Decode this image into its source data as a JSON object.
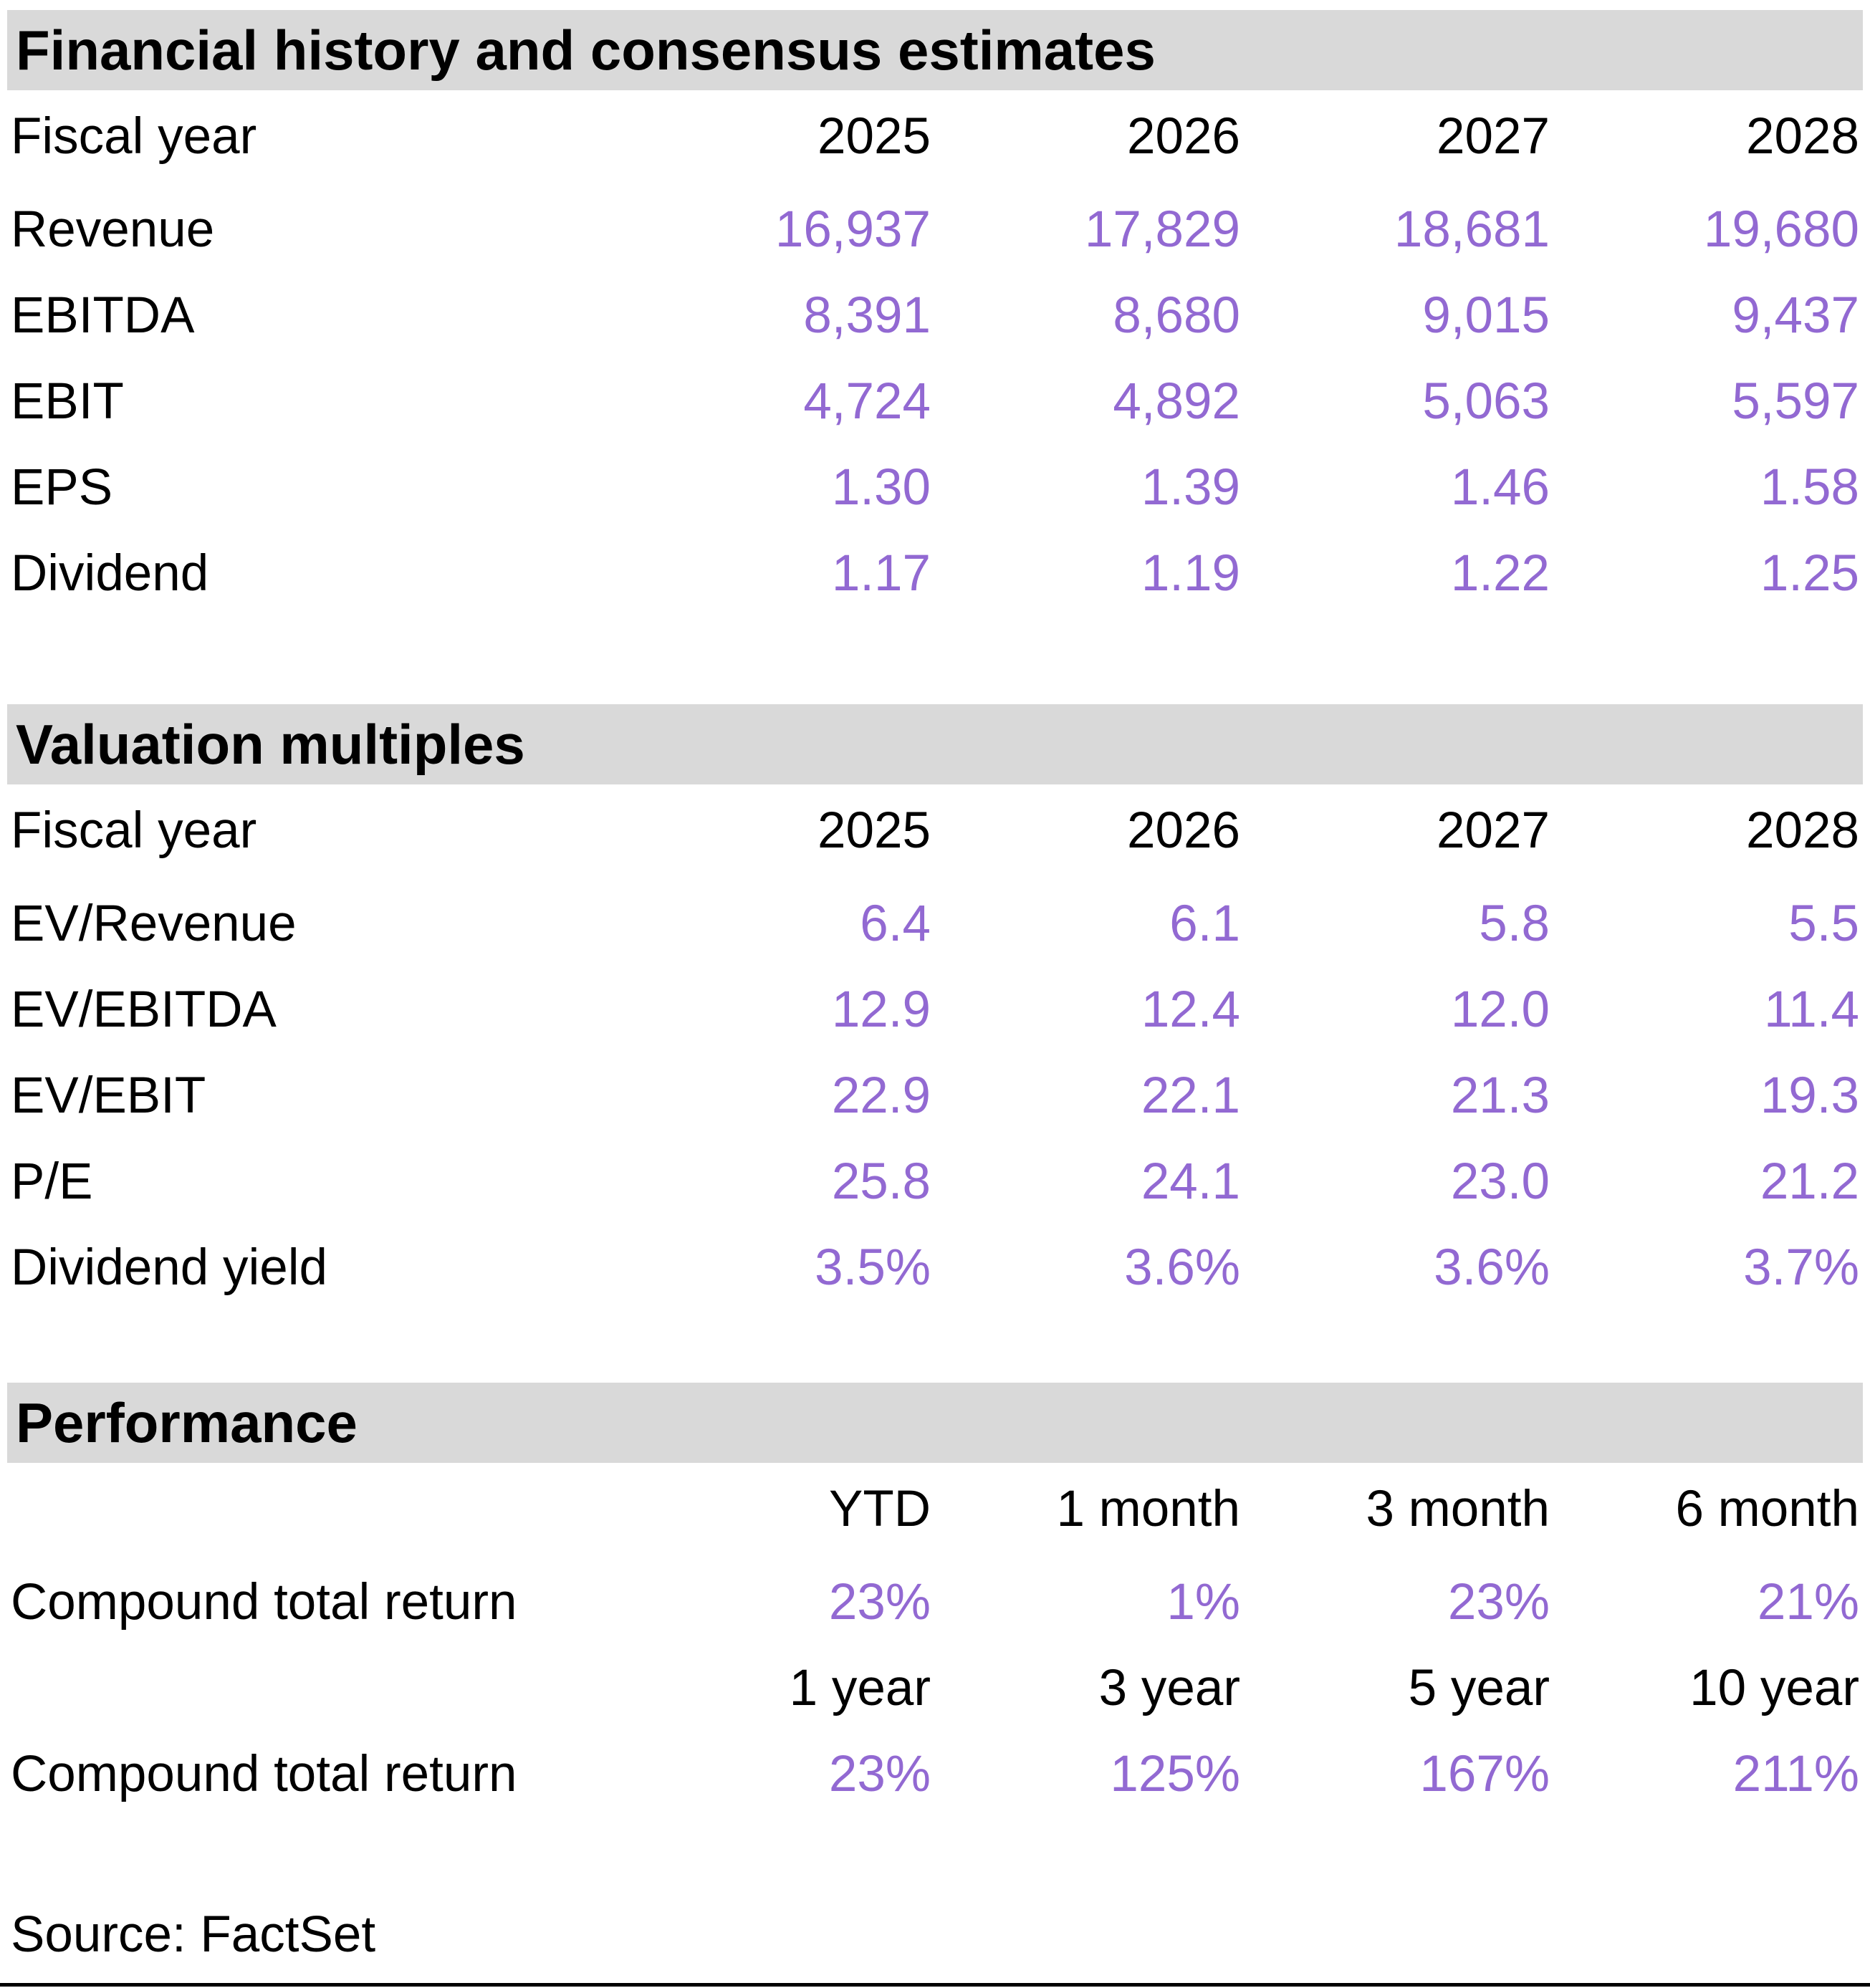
{
  "colors": {
    "purple": "#9269D2",
    "band": "#D9D9D9",
    "text": "#000000"
  },
  "sections": [
    {
      "title": "Financial history and consensus estimates",
      "header_row": {
        "label": "Fiscal year",
        "cols": [
          "2025",
          "2026",
          "2027",
          "2028"
        ]
      },
      "rows": [
        {
          "label": "Revenue",
          "values": [
            "16,937",
            "17,829",
            "18,681",
            "19,680"
          ]
        },
        {
          "label": "EBITDA",
          "values": [
            "8,391",
            "8,680",
            "9,015",
            "9,437"
          ]
        },
        {
          "label": "EBIT",
          "values": [
            "4,724",
            "4,892",
            "5,063",
            "5,597"
          ]
        },
        {
          "label": "EPS",
          "values": [
            "1.30",
            "1.39",
            "1.46",
            "1.58"
          ]
        },
        {
          "label": "Dividend",
          "values": [
            "1.17",
            "1.19",
            "1.22",
            "1.25"
          ]
        }
      ]
    },
    {
      "title": "Valuation multiples",
      "header_row": {
        "label": "Fiscal year",
        "cols": [
          "2025",
          "2026",
          "2027",
          "2028"
        ]
      },
      "rows": [
        {
          "label": "EV/Revenue",
          "values": [
            "6.4",
            "6.1",
            "5.8",
            "5.5"
          ]
        },
        {
          "label": "EV/EBITDA",
          "values": [
            "12.9",
            "12.4",
            "12.0",
            "11.4"
          ]
        },
        {
          "label": "EV/EBIT",
          "values": [
            "22.9",
            "22.1",
            "21.3",
            "19.3"
          ]
        },
        {
          "label": "P/E",
          "values": [
            "25.8",
            "24.1",
            "23.0",
            "21.2"
          ]
        },
        {
          "label": "Dividend yield",
          "values": [
            "3.5%",
            "3.6%",
            "3.6%",
            "3.7%"
          ]
        }
      ]
    },
    {
      "title": "Performance",
      "blocks": [
        {
          "period_cols": [
            "YTD",
            "1 month",
            "3 month",
            "6 month"
          ],
          "row": {
            "label": "Compound total return",
            "values": [
              "23%",
              "1%",
              "23%",
              "21%"
            ]
          }
        },
        {
          "period_cols": [
            "1 year",
            "3 year",
            "5 year",
            "10 year"
          ],
          "row": {
            "label": "Compound total return",
            "values": [
              "23%",
              "125%",
              "167%",
              "211%"
            ]
          }
        }
      ]
    }
  ],
  "footer": {
    "source": "Source: FactSet"
  }
}
